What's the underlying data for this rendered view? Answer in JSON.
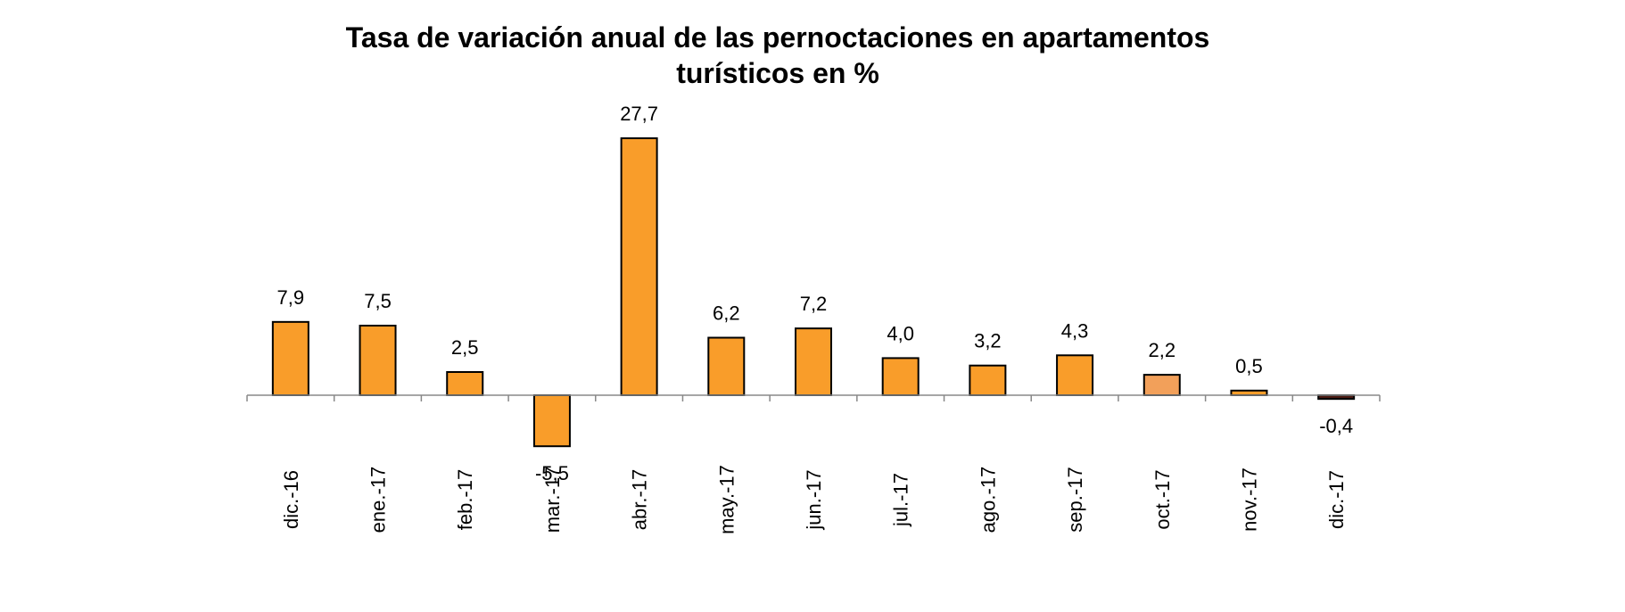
{
  "chart_data": {
    "type": "bar",
    "title": [
      "Tasa de variación anual de las pernoctaciones en apartamentos",
      "turísticos en %"
    ],
    "xlabel": "",
    "ylabel": "",
    "categories": [
      "dic.-16",
      "ene.-17",
      "feb.-17",
      "mar.-17",
      "abr.-17",
      "may.-17",
      "jun.-17",
      "jul.-17",
      "ago.-17",
      "sep.-17",
      "oct.-17",
      "nov.-17",
      "dic.-17"
    ],
    "values": [
      7.9,
      7.5,
      2.5,
      -5.5,
      27.7,
      6.2,
      7.2,
      4.0,
      3.2,
      4.3,
      2.2,
      0.5,
      -0.4
    ],
    "value_labels": [
      "7,9",
      "7,5",
      "2,5",
      "-5,5",
      "27,7",
      "6,2",
      "7,2",
      "4,0",
      "3,2",
      "4,3",
      "2,2",
      "0,5",
      "-0,4"
    ],
    "bar_colors": [
      "#F99D2A",
      "#F99D2A",
      "#F99D2A",
      "#F99D2A",
      "#F99D2A",
      "#F99D2A",
      "#F99D2A",
      "#F99D2A",
      "#F99D2A",
      "#F99D2A",
      "#F2A05A",
      "#F99D2A",
      "#4A1810"
    ],
    "ylim": [
      -8,
      30
    ],
    "grid": false,
    "legend": "none"
  }
}
